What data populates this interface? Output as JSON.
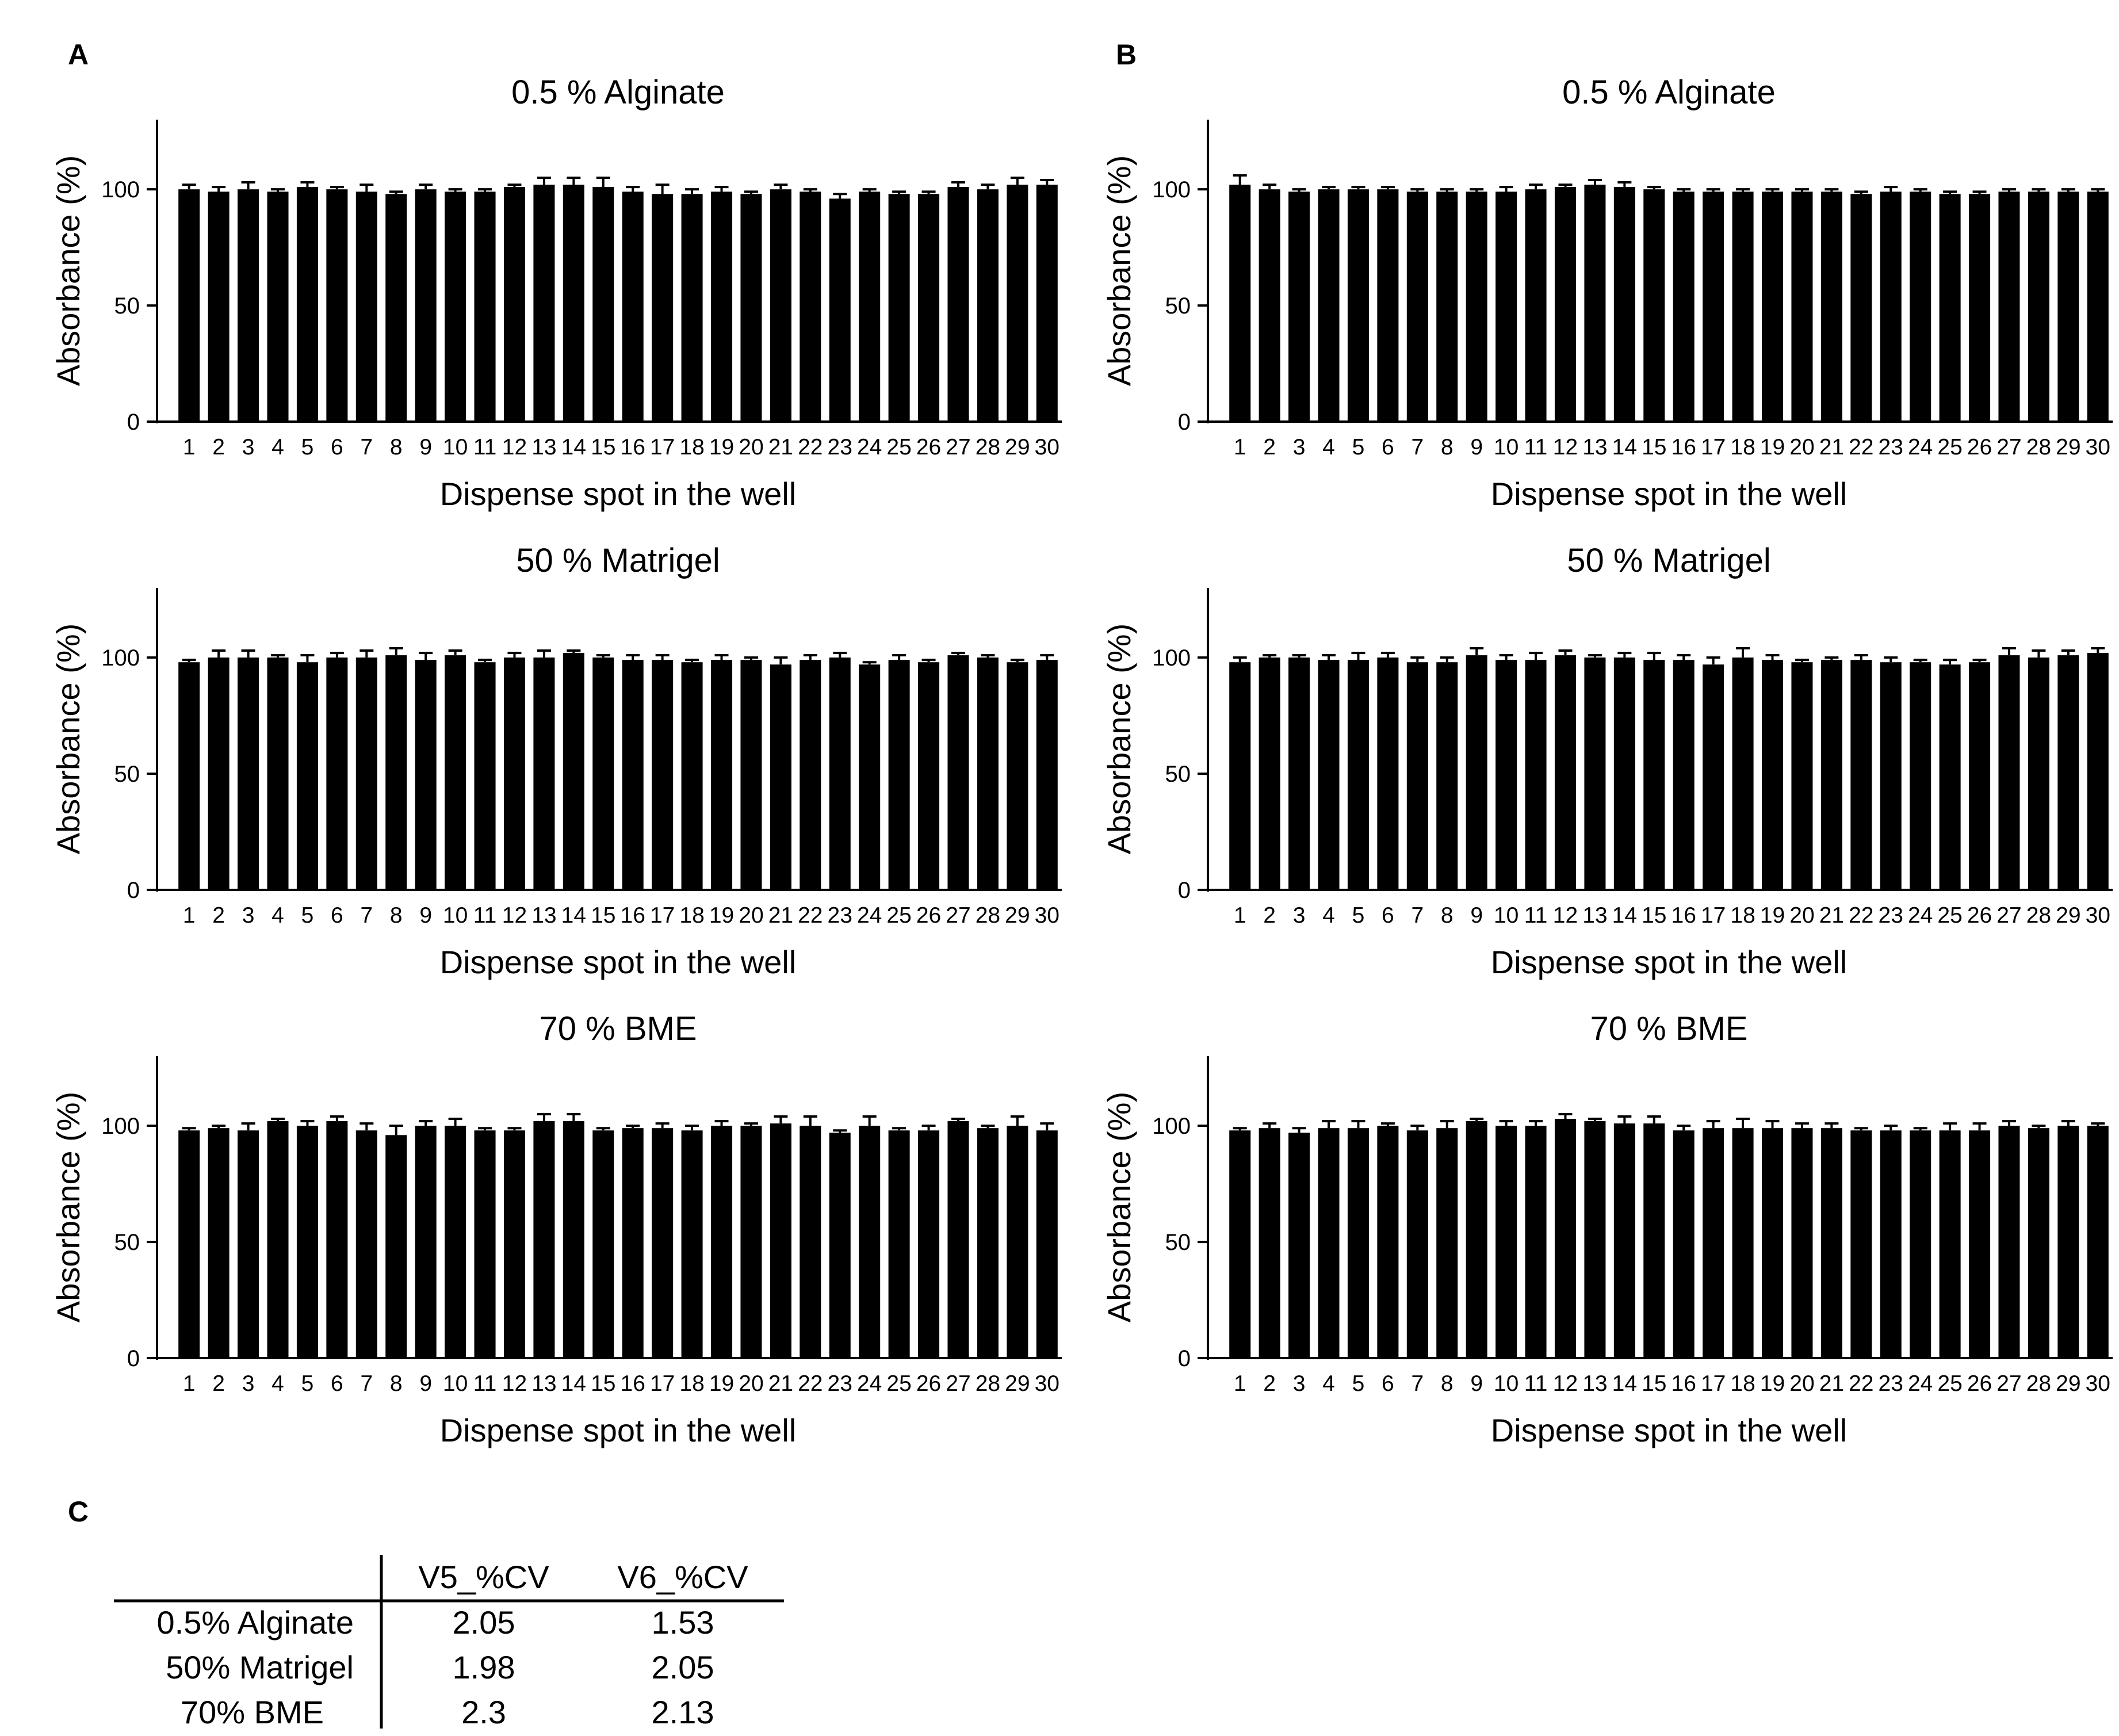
{
  "panels": [
    {
      "letter": "A"
    },
    {
      "letter": "B"
    },
    {
      "letter": "C"
    }
  ],
  "chart_data": [
    {
      "type": "bar",
      "panel": "A",
      "title": "0.5 % Alginate",
      "xlabel": "Dispense spot in the well",
      "ylabel": "Absorbance (%)",
      "ylim": [
        0,
        130
      ],
      "yticks": [
        0,
        50,
        100
      ],
      "categories": [
        "1",
        "2",
        "3",
        "4",
        "5",
        "6",
        "7",
        "8",
        "9",
        "10",
        "11",
        "12",
        "13",
        "14",
        "15",
        "16",
        "17",
        "18",
        "19",
        "20",
        "21",
        "22",
        "23",
        "24",
        "25",
        "26",
        "27",
        "28",
        "29",
        "30"
      ],
      "values": [
        100,
        99,
        100,
        99,
        101,
        100,
        99,
        98,
        100,
        99,
        99,
        101,
        102,
        102,
        101,
        99,
        98,
        98,
        99,
        98,
        100,
        99,
        96,
        99,
        98,
        98,
        101,
        100,
        102,
        102
      ],
      "errors": [
        2,
        2,
        3,
        1,
        2,
        1,
        3,
        1,
        2,
        1,
        1,
        1,
        3,
        3,
        4,
        2,
        4,
        2,
        2,
        1,
        2,
        1,
        2,
        1,
        1,
        1,
        2,
        2,
        3,
        2
      ]
    },
    {
      "type": "bar",
      "panel": "B",
      "title": "0.5 % Alginate",
      "xlabel": "Dispense spot in the well",
      "ylabel": "Absorbance (%)",
      "ylim": [
        0,
        130
      ],
      "yticks": [
        0,
        50,
        100
      ],
      "categories": [
        "1",
        "2",
        "3",
        "4",
        "5",
        "6",
        "7",
        "8",
        "9",
        "10",
        "11",
        "12",
        "13",
        "14",
        "15",
        "16",
        "17",
        "18",
        "19",
        "20",
        "21",
        "22",
        "23",
        "24",
        "25",
        "26",
        "27",
        "28",
        "29",
        "30"
      ],
      "values": [
        102,
        100,
        99,
        100,
        100,
        100,
        99,
        99,
        99,
        99,
        100,
        101,
        102,
        101,
        100,
        99,
        99,
        99,
        99,
        99,
        99,
        98,
        99,
        99,
        98,
        98,
        99,
        99,
        99,
        99
      ],
      "errors": [
        4,
        2,
        1,
        1,
        1,
        1,
        1,
        1,
        1,
        2,
        2,
        1,
        2,
        2,
        1,
        1,
        1,
        1,
        1,
        1,
        1,
        1,
        2,
        1,
        1,
        1,
        1,
        1,
        1,
        1
      ]
    },
    {
      "type": "bar",
      "panel": "A",
      "title": "50 % Matrigel",
      "xlabel": "Dispense spot in the well",
      "ylabel": "Absorbance (%)",
      "ylim": [
        0,
        130
      ],
      "yticks": [
        0,
        50,
        100
      ],
      "categories": [
        "1",
        "2",
        "3",
        "4",
        "5",
        "6",
        "7",
        "8",
        "9",
        "10",
        "11",
        "12",
        "13",
        "14",
        "15",
        "16",
        "17",
        "18",
        "19",
        "20",
        "21",
        "22",
        "23",
        "24",
        "25",
        "26",
        "27",
        "28",
        "29",
        "30"
      ],
      "values": [
        98,
        100,
        100,
        100,
        98,
        100,
        100,
        101,
        99,
        101,
        98,
        100,
        100,
        102,
        100,
        99,
        99,
        98,
        99,
        99,
        97,
        99,
        100,
        97,
        99,
        98,
        101,
        100,
        98,
        99
      ],
      "errors": [
        1,
        3,
        3,
        1,
        3,
        2,
        3,
        3,
        3,
        2,
        1,
        2,
        3,
        1,
        1,
        2,
        2,
        1,
        2,
        1,
        3,
        2,
        2,
        1,
        2,
        1,
        1,
        1,
        1,
        2
      ]
    },
    {
      "type": "bar",
      "panel": "B",
      "title": "50 % Matrigel",
      "xlabel": "Dispense spot in the well",
      "ylabel": "Absorbance (%)",
      "ylim": [
        0,
        130
      ],
      "yticks": [
        0,
        50,
        100
      ],
      "categories": [
        "1",
        "2",
        "3",
        "4",
        "5",
        "6",
        "7",
        "8",
        "9",
        "10",
        "11",
        "12",
        "13",
        "14",
        "15",
        "16",
        "17",
        "18",
        "19",
        "20",
        "21",
        "22",
        "23",
        "24",
        "25",
        "26",
        "27",
        "28",
        "29",
        "30"
      ],
      "values": [
        98,
        100,
        100,
        99,
        99,
        100,
        98,
        98,
        101,
        99,
        99,
        101,
        100,
        100,
        99,
        99,
        97,
        100,
        99,
        98,
        99,
        99,
        98,
        98,
        97,
        98,
        101,
        100,
        101,
        102
      ],
      "errors": [
        2,
        1,
        1,
        2,
        3,
        2,
        2,
        2,
        3,
        2,
        3,
        2,
        1,
        2,
        3,
        2,
        3,
        4,
        2,
        1,
        1,
        2,
        2,
        1,
        2,
        1,
        3,
        3,
        2,
        2
      ]
    },
    {
      "type": "bar",
      "panel": "A",
      "title": "70 % BME",
      "xlabel": "Dispense spot in the well",
      "ylabel": "Absorbance (%)",
      "ylim": [
        0,
        130
      ],
      "yticks": [
        0,
        50,
        100
      ],
      "categories": [
        "1",
        "2",
        "3",
        "4",
        "5",
        "6",
        "7",
        "8",
        "9",
        "10",
        "11",
        "12",
        "13",
        "14",
        "15",
        "16",
        "17",
        "18",
        "19",
        "20",
        "21",
        "22",
        "23",
        "24",
        "25",
        "26",
        "27",
        "28",
        "29",
        "30"
      ],
      "values": [
        98,
        99,
        98,
        102,
        100,
        102,
        98,
        96,
        100,
        100,
        98,
        98,
        102,
        102,
        98,
        99,
        99,
        98,
        100,
        100,
        101,
        100,
        97,
        100,
        98,
        98,
        102,
        99,
        100,
        98
      ],
      "errors": [
        1,
        1,
        3,
        1,
        2,
        2,
        3,
        4,
        2,
        3,
        1,
        1,
        3,
        3,
        1,
        1,
        2,
        2,
        2,
        1,
        3,
        4,
        1,
        4,
        1,
        2,
        1,
        1,
        4,
        3
      ]
    },
    {
      "type": "bar",
      "panel": "B",
      "title": "70 % BME",
      "xlabel": "Dispense spot in the well",
      "ylabel": "Absorbance (%)",
      "ylim": [
        0,
        130
      ],
      "yticks": [
        0,
        50,
        100
      ],
      "categories": [
        "1",
        "2",
        "3",
        "4",
        "5",
        "6",
        "7",
        "8",
        "9",
        "10",
        "11",
        "12",
        "13",
        "14",
        "15",
        "16",
        "17",
        "18",
        "19",
        "20",
        "21",
        "22",
        "23",
        "24",
        "25",
        "26",
        "27",
        "28",
        "29",
        "30"
      ],
      "values": [
        98,
        99,
        97,
        99,
        99,
        100,
        98,
        99,
        102,
        100,
        100,
        103,
        102,
        101,
        101,
        98,
        99,
        99,
        99,
        99,
        99,
        98,
        98,
        98,
        98,
        98,
        100,
        99,
        100,
        100
      ],
      "errors": [
        1,
        2,
        2,
        3,
        3,
        1,
        2,
        3,
        1,
        2,
        2,
        2,
        1,
        3,
        3,
        2,
        3,
        4,
        3,
        2,
        2,
        1,
        2,
        1,
        3,
        3,
        2,
        1,
        2,
        1
      ]
    },
    {
      "type": "table",
      "panel": "C",
      "columns": [
        "",
        "V5_%CV",
        "V6_%CV"
      ],
      "rows": [
        [
          "0.5% Alginate",
          "2.05",
          "1.53"
        ],
        [
          "50% Matrigel",
          "1.98",
          "2.05"
        ],
        [
          "70% BME",
          "2.3",
          "2.13"
        ]
      ]
    }
  ]
}
